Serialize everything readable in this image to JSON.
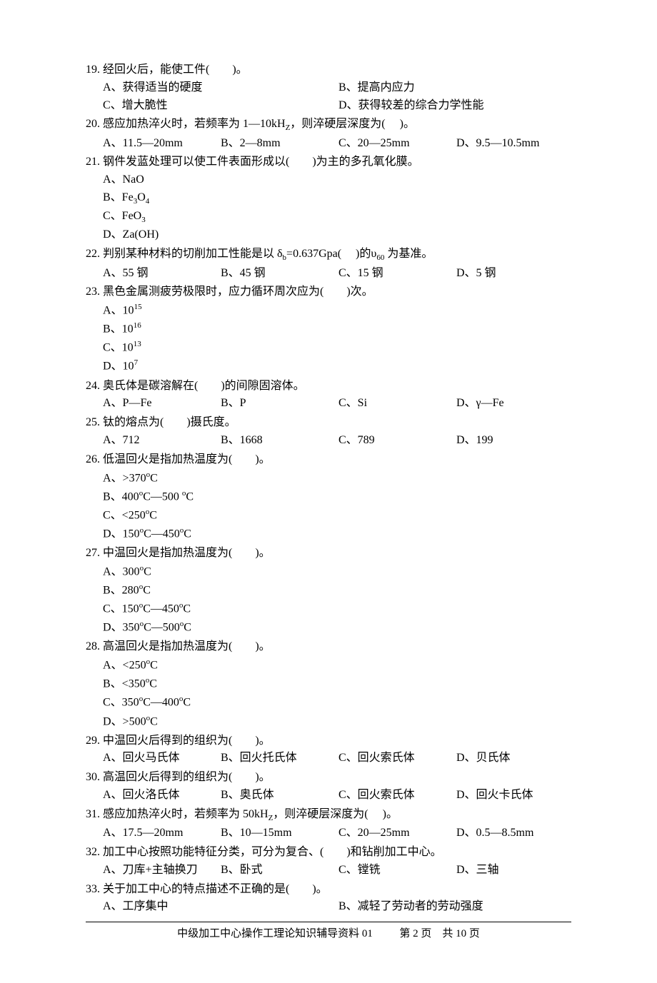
{
  "questions": [
    {
      "num": "19.",
      "stem": "经回火后，能使工件(　　)。",
      "layout": "2col",
      "opts": [
        {
          "label": "A、",
          "text": "获得适当的硬度"
        },
        {
          "label": "B、",
          "text": "提高内应力"
        },
        {
          "label": "C、",
          "text": "增大脆性"
        },
        {
          "label": "D、",
          "text": "获得较差的综合力学性能"
        }
      ]
    },
    {
      "num": "20.",
      "stem": "感应加热淬火时，若频率为 1—10kH<sub>Z</sub>，则淬硬层深度为(　 )。",
      "layout": "4col",
      "opts": [
        {
          "label": "A、",
          "text": "11.5—20mm"
        },
        {
          "label": "B、",
          "text": "2—8mm"
        },
        {
          "label": "C、",
          "text": "20—25mm"
        },
        {
          "label": "D、",
          "text": "9.5—10.5mm"
        }
      ]
    },
    {
      "num": "21.",
      "stem": "钢件发蓝处理可以使工件表面形成以(　　)为主的多孔氧化膜。",
      "layout": "lines",
      "opts": [
        {
          "label": "A、",
          "text": "NaO"
        },
        {
          "label": "B、",
          "text": "Fe<sub>3</sub>O<sub>4</sub>"
        },
        {
          "label": "C、",
          "text": "FeO<sub>3</sub>"
        },
        {
          "label": "D、",
          "text": "Za(OH)"
        }
      ]
    },
    {
      "num": "22.",
      "stem": "判别某种材料的切削加工性能是以 δ<sub>b</sub>=0.637Gpa(　 )的υ<sub>60</sub> 为基准。",
      "layout": "4col",
      "opts": [
        {
          "label": "A、",
          "text": "55 钢"
        },
        {
          "label": "B、",
          "text": "45 钢"
        },
        {
          "label": "C、",
          "text": "15 钢"
        },
        {
          "label": "D、",
          "text": "5 钢"
        }
      ]
    },
    {
      "num": "23.",
      "stem": "黑色金属测疲劳极限时，应力循环周次应为(　　)次。",
      "layout": "lines",
      "opts": [
        {
          "label": "A、",
          "text": "10<sup>15</sup>"
        },
        {
          "label": "B、",
          "text": "10<sup>16</sup>"
        },
        {
          "label": "C、",
          "text": "10<sup>13</sup>"
        },
        {
          "label": "D、",
          "text": "10<sup>7</sup>"
        }
      ]
    },
    {
      "num": "24.",
      "stem": "奥氏体是碳溶解在(　　)的间隙固溶体。",
      "layout": "4col",
      "opts": [
        {
          "label": "A、",
          "text": "P—Fe"
        },
        {
          "label": "B、",
          "text": "P"
        },
        {
          "label": "C、",
          "text": "Si"
        },
        {
          "label": "D、",
          "text": "γ—Fe"
        }
      ]
    },
    {
      "num": "25.",
      "stem": "钛的熔点为(　　)摄氏度。",
      "layout": "4col",
      "opts": [
        {
          "label": "A、",
          "text": "712"
        },
        {
          "label": "B、",
          "text": "1668"
        },
        {
          "label": "C、",
          "text": "789"
        },
        {
          "label": "D、",
          "text": "199"
        }
      ]
    },
    {
      "num": "26.",
      "stem": "低温回火是指加热温度为(　　)。",
      "layout": "lines",
      "opts": [
        {
          "label": "A、",
          "text": ">370<sup>o</sup>C"
        },
        {
          "label": "B、",
          "text": "400<sup>o</sup>C—500 <sup>o</sup>C"
        },
        {
          "label": "C、",
          "text": "<250<sup>o</sup>C"
        },
        {
          "label": "D、",
          "text": "150<sup>o</sup>C—450<sup>o</sup>C"
        }
      ]
    },
    {
      "num": "27.",
      "stem": "中温回火是指加热温度为(　　)。",
      "layout": "lines",
      "opts": [
        {
          "label": "A、",
          "text": "300<sup>o</sup>C"
        },
        {
          "label": "B、",
          "text": "280<sup>o</sup>C"
        },
        {
          "label": "C、",
          "text": "150<sup>o</sup>C—450<sup>o</sup>C"
        },
        {
          "label": "D、",
          "text": "350<sup>o</sup>C—500<sup>o</sup>C"
        }
      ]
    },
    {
      "num": "28.",
      "stem": "高温回火是指加热温度为(　　)。",
      "layout": "lines",
      "opts": [
        {
          "label": "A、",
          "text": "<250<sup>o</sup>C"
        },
        {
          "label": "B、",
          "text": "<350<sup>o</sup>C"
        },
        {
          "label": "C、",
          "text": "350<sup>o</sup>C—400<sup>o</sup>C"
        },
        {
          "label": "D、",
          "text": ">500<sup>o</sup>C"
        }
      ]
    },
    {
      "num": "29.",
      "stem": "中温回火后得到的组织为(　　)。",
      "layout": "4col",
      "opts": [
        {
          "label": "A、",
          "text": "回火马氏体"
        },
        {
          "label": "B、",
          "text": "回火托氏体"
        },
        {
          "label": "C、",
          "text": "回火索氏体"
        },
        {
          "label": "D、",
          "text": "贝氏体"
        }
      ]
    },
    {
      "num": "30.",
      "stem": "高温回火后得到的组织为(　　)。",
      "layout": "4col",
      "opts": [
        {
          "label": "A、",
          "text": "回火洛氏体"
        },
        {
          "label": "B、",
          "text": "奥氏体"
        },
        {
          "label": "C、",
          "text": "回火索氏体"
        },
        {
          "label": "D、",
          "text": "回火卡氏体"
        }
      ]
    },
    {
      "num": "31.",
      "stem": "感应加热淬火时，若频率为 50kH<sub>Z</sub>，则淬硬层深度为(　 )。",
      "layout": "4col",
      "opts": [
        {
          "label": "A、",
          "text": "17.5—20mm"
        },
        {
          "label": "B、",
          "text": "10—15mm"
        },
        {
          "label": "C、",
          "text": "20—25mm"
        },
        {
          "label": "D、",
          "text": "0.5—8.5mm"
        }
      ]
    },
    {
      "num": "32.",
      "stem": "加工中心按照功能特征分类，可分为复合、(　　)和钻削加工中心。",
      "layout": "4col",
      "opts": [
        {
          "label": "A、",
          "text": "刀库+主轴换刀"
        },
        {
          "label": "B、",
          "text": "卧式"
        },
        {
          "label": "C、",
          "text": "镗铣"
        },
        {
          "label": "D、",
          "text": "三轴"
        }
      ]
    },
    {
      "num": "33.",
      "stem": "关于加工中心的特点描述不正确的是(　　)。",
      "layout": "2col",
      "opts": [
        {
          "label": "A、",
          "text": "工序集中"
        },
        {
          "label": "B、",
          "text": "减轻了劳动者的劳动强度"
        }
      ]
    }
  ],
  "footer": {
    "text_left": "中级加工中心操作工理论知识辅导资料 01",
    "text_right": "第 2 页　共 10 页"
  }
}
